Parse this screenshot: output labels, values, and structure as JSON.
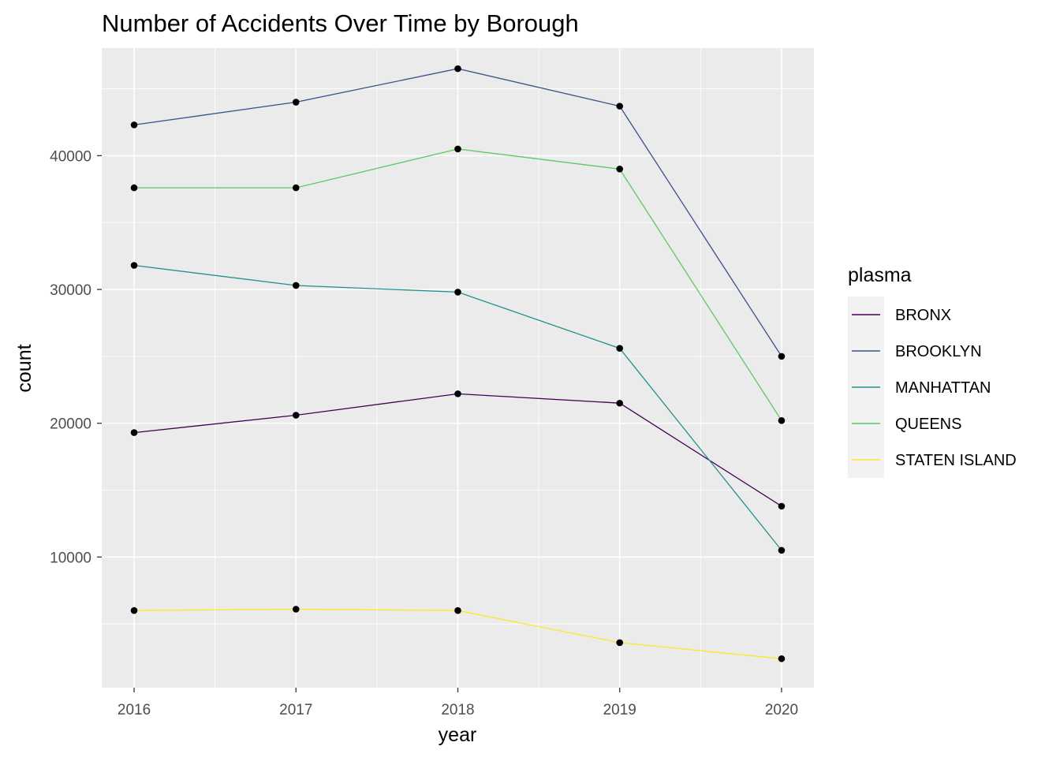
{
  "chart_data": {
    "type": "line",
    "title": "Number of Accidents Over Time by Borough",
    "xlabel": "year",
    "ylabel": "count",
    "x": [
      2016,
      2017,
      2018,
      2019,
      2020
    ],
    "x_ticks": [
      "2016",
      "2017",
      "2018",
      "2019",
      "2020"
    ],
    "y_ticks": [
      10000,
      20000,
      30000,
      40000
    ],
    "y_tick_labels": [
      "10000",
      "20000",
      "30000",
      "40000"
    ],
    "xlim": [
      2015.8,
      2020.2
    ],
    "ylim": [
      235,
      48040
    ],
    "grid": true,
    "point_color": "#000000",
    "legend": {
      "title": "plasma",
      "position": "right"
    },
    "series": [
      {
        "name": "BRONX",
        "color": "#440154",
        "values": [
          19300,
          20600,
          22200,
          21500,
          13800
        ]
      },
      {
        "name": "BROOKLYN",
        "color": "#3B528B",
        "values": [
          42300,
          44000,
          46500,
          43700,
          25000
        ]
      },
      {
        "name": "MANHATTAN",
        "color": "#21908C",
        "values": [
          31800,
          30300,
          29800,
          25600,
          10500
        ]
      },
      {
        "name": "QUEENS",
        "color": "#5DC863",
        "values": [
          37600,
          37600,
          40500,
          39000,
          20200
        ]
      },
      {
        "name": "STATEN ISLAND",
        "color": "#FDE725",
        "values": [
          6000,
          6100,
          6000,
          3600,
          2400
        ]
      }
    ]
  }
}
